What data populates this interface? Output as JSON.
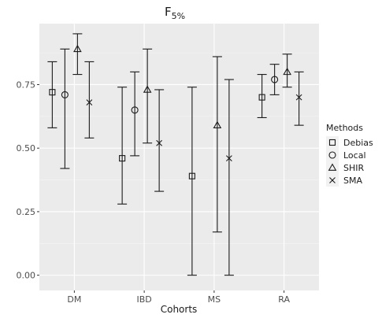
{
  "chart_data": {
    "type": "scatter",
    "title": "F",
    "title_subscript": "5%",
    "xlabel": "Cohorts",
    "ylabel": "",
    "categories": [
      "DM",
      "IBD",
      "MS",
      "RA"
    ],
    "ylim": [
      -0.06,
      0.99
    ],
    "yticks": [
      0.0,
      0.25,
      0.5,
      0.75
    ],
    "ytick_labels": [
      "0.00",
      "0.25",
      "0.50",
      "0.75"
    ],
    "grid": true,
    "legend_position": "right",
    "legend_title": "Methods",
    "series": [
      {
        "name": "Debias",
        "marker": "square",
        "points": [
          {
            "category": "DM",
            "value": 0.72,
            "low": 0.58,
            "high": 0.84
          },
          {
            "category": "IBD",
            "value": 0.46,
            "low": 0.28,
            "high": 0.74
          },
          {
            "category": "MS",
            "value": 0.39,
            "low": 0.0,
            "high": 0.74
          },
          {
            "category": "RA",
            "value": 0.7,
            "low": 0.62,
            "high": 0.79
          }
        ]
      },
      {
        "name": "Local",
        "marker": "circle",
        "points": [
          {
            "category": "DM",
            "value": 0.71,
            "low": 0.42,
            "high": 0.89
          },
          {
            "category": "IBD",
            "value": 0.65,
            "low": 0.47,
            "high": 0.8
          },
          {
            "category": "RA",
            "value": 0.77,
            "low": 0.71,
            "high": 0.83
          }
        ]
      },
      {
        "name": "SHIR",
        "marker": "triangle",
        "points": [
          {
            "category": "DM",
            "value": 0.89,
            "low": 0.79,
            "high": 0.95
          },
          {
            "category": "IBD",
            "value": 0.73,
            "low": 0.52,
            "high": 0.89
          },
          {
            "category": "MS",
            "value": 0.59,
            "low": 0.17,
            "high": 0.86
          },
          {
            "category": "RA",
            "value": 0.8,
            "low": 0.74,
            "high": 0.87
          }
        ]
      },
      {
        "name": "SMA",
        "marker": "cross",
        "points": [
          {
            "category": "DM",
            "value": 0.68,
            "low": 0.54,
            "high": 0.84
          },
          {
            "category": "IBD",
            "value": 0.52,
            "low": 0.33,
            "high": 0.73
          },
          {
            "category": "MS",
            "value": 0.46,
            "low": 0.0,
            "high": 0.77
          },
          {
            "category": "RA",
            "value": 0.7,
            "low": 0.59,
            "high": 0.8
          }
        ]
      }
    ]
  }
}
